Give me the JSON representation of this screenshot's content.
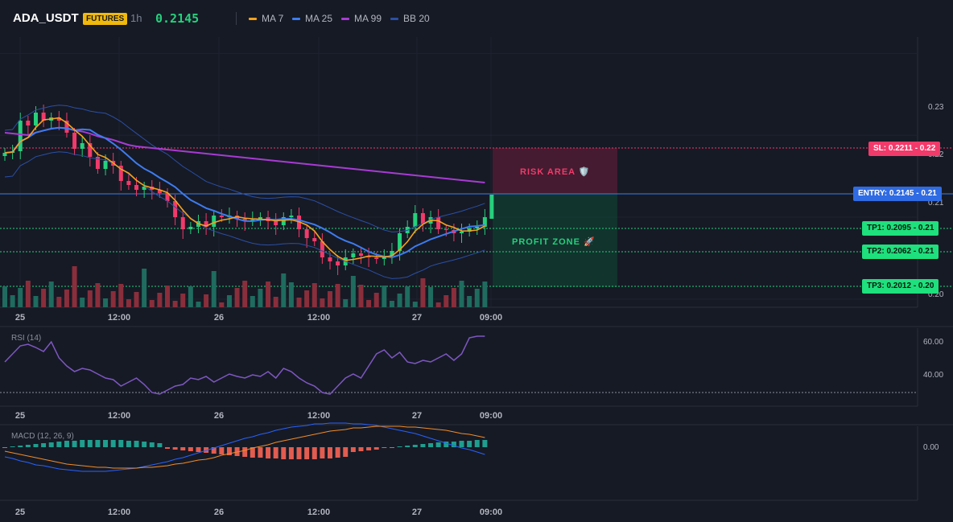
{
  "header": {
    "symbol": "ADA_USDT",
    "badge": "FUTURES",
    "timeframe": "1h",
    "last_price": "0.2145",
    "indicators": [
      {
        "label": "MA 7",
        "color": "#f7a21b"
      },
      {
        "label": "MA 25",
        "color": "#3d7cf0"
      },
      {
        "label": "MA 99",
        "color": "#a73bd3"
      },
      {
        "label": "BB 20",
        "color": "#2b4fa5"
      }
    ]
  },
  "price_axis": {
    "ticks": [
      "0.23",
      "0.22",
      "0.21",
      "0.20"
    ]
  },
  "time_axis": {
    "labels": [
      "25",
      "12:00",
      "26",
      "12:00",
      "27",
      "09:00"
    ]
  },
  "trade_levels": {
    "sl": "SL: 0.2211 - 0.22",
    "entry": "ENTRY: 0.2145 - 0.21",
    "tp1": "TP1: 0.2095 - 0.21",
    "tp2": "TP2: 0.2062 - 0.21",
    "tp3": "TP3: 0.2012 - 0.20"
  },
  "zones": {
    "risk": "RISK AREA 🛡️",
    "profit": "PROFIT ZONE 🚀"
  },
  "rsi": {
    "title": "RSI (14)",
    "ticks": [
      "60.00",
      "40.00"
    ]
  },
  "macd": {
    "title": "MACD (12, 26, 9)",
    "ticks": [
      "0.00"
    ]
  },
  "colors": {
    "up": "#26d07c",
    "down": "#f23a6a",
    "vol_up": "#1f6b5f",
    "vol_down": "#8a2e3c"
  }
}
